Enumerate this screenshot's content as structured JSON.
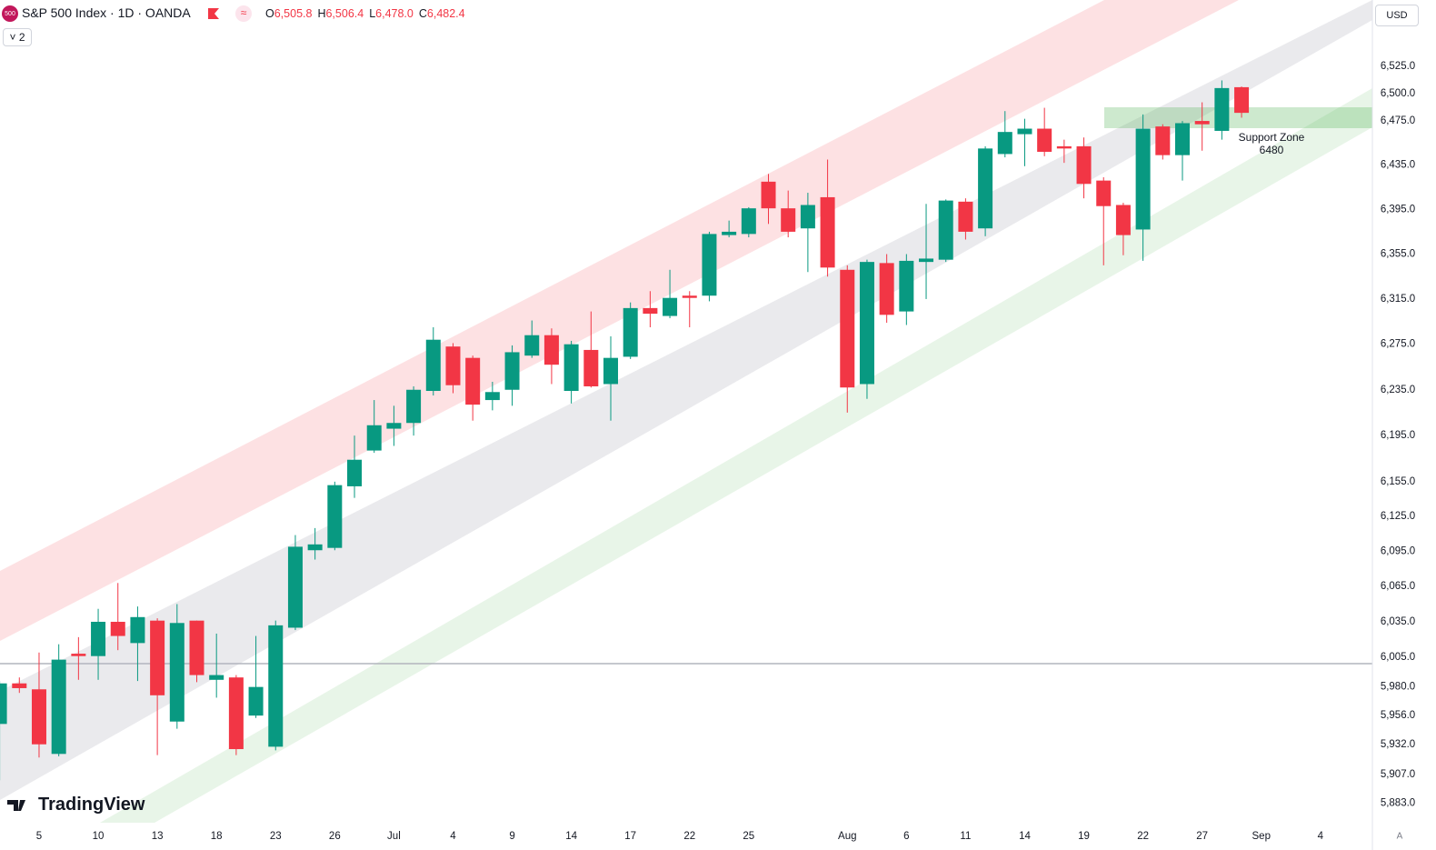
{
  "header": {
    "symbol_badge": "500",
    "title": "S&P 500 Index · 1D · OANDA",
    "ohlc": [
      {
        "key": "O",
        "value": "6,505.8"
      },
      {
        "key": "H",
        "value": "6,506.4"
      },
      {
        "key": "L",
        "value": "6,478.0"
      },
      {
        "key": "C",
        "value": "6,482.4"
      }
    ],
    "indicator_count": "2",
    "currency": "USD",
    "logo": "TradingView",
    "scale_mode": "A"
  },
  "chart_data": {
    "type": "candlestick",
    "log_scale": true,
    "grid": false,
    "up_color": "#089981",
    "down_color": "#f23645",
    "categories": [
      null,
      null,
      "5",
      null,
      null,
      "10",
      null,
      null,
      "13",
      null,
      null,
      "18",
      null,
      null,
      "23",
      null,
      null,
      "26",
      null,
      null,
      "Jul",
      null,
      null,
      "4",
      null,
      null,
      "9",
      null,
      null,
      "14",
      null,
      null,
      "17",
      null,
      null,
      "22",
      null,
      null,
      "25",
      null,
      null,
      null,
      null,
      "Aug",
      null,
      null,
      "6",
      null,
      null,
      "11",
      null,
      null,
      "14",
      null,
      null,
      "19",
      null,
      null,
      "22",
      null,
      null,
      "27",
      null,
      null,
      "Sep",
      null,
      null,
      "4",
      null
    ],
    "open": [
      5949,
      5983,
      5978,
      5924,
      6008,
      6006,
      6035,
      6017,
      6036,
      5951,
      6036,
      5986,
      5988,
      5956,
      5930,
      6030,
      6096,
      6098,
      6151,
      6182,
      6201,
      6206,
      6234,
      6273,
      6263,
      6226,
      6235,
      6265,
      6283,
      6234,
      6270,
      6240,
      6264,
      6307,
      6300,
      6318,
      6318,
      6372,
      6373,
      6420,
      6396,
      6378,
      6406,
      6341,
      6240,
      6347,
      6304,
      6348,
      6350,
      6402,
      6378,
      6445,
      6463,
      6468,
      6452,
      6452,
      6421,
      6399,
      6377,
      6470,
      6444,
      6475,
      6466,
      6505.8,
      null,
      null,
      null,
      null,
      null
    ],
    "high": [
      5985,
      5988,
      6009,
      6016,
      6022,
      6046,
      6068,
      6048,
      6038,
      6050,
      6036,
      6025,
      5990,
      6023,
      6036,
      6109,
      6115,
      6155,
      6195,
      6226,
      6221,
      6238,
      6290,
      6276,
      6265,
      6242,
      6274,
      6296,
      6289,
      6278,
      6304,
      6282,
      6312,
      6322,
      6341,
      6322,
      6375,
      6385,
      6397,
      6427,
      6412,
      6410,
      6440,
      6345,
      6350,
      6355,
      6355,
      6400,
      6404,
      6405,
      6452,
      6484,
      6477,
      6487,
      6458,
      6460,
      6424,
      6401,
      6481,
      6472,
      6475,
      6492,
      6512,
      6506.4,
      null,
      null,
      null,
      null,
      null
    ],
    "low": [
      5902,
      5975,
      5921,
      5922,
      5986,
      5986,
      6011,
      5985,
      5923,
      5945,
      5984,
      5971,
      5923,
      5954,
      5927,
      6028,
      6088,
      6096,
      6141,
      6180,
      6186,
      6195,
      6230,
      6232,
      6208,
      6217,
      6221,
      6263,
      6240,
      6223,
      6237,
      6208,
      6262,
      6290,
      6298,
      6290,
      6313,
      6370,
      6370,
      6382,
      6370,
      6339,
      6335,
      6215,
      6227,
      6294,
      6292,
      6315,
      6348,
      6368,
      6371,
      6442,
      6434,
      6443,
      6437,
      6405,
      6345,
      6354,
      6349,
      6440,
      6421,
      6448,
      6458,
      6478.0,
      null,
      null,
      null,
      null,
      null
    ],
    "close": [
      5983,
      5979,
      5932,
      6003,
      6006,
      6035,
      6023,
      6039,
      5973,
      6034,
      5990,
      5990,
      5928,
      5980,
      6032,
      6099,
      6101,
      6152,
      6174,
      6204,
      6206,
      6235,
      6279,
      6239,
      6222,
      6233,
      6268,
      6283,
      6257,
      6275,
      6238,
      6263,
      6307,
      6302,
      6316,
      6316,
      6373,
      6375,
      6396,
      6396,
      6375,
      6399,
      6343,
      6237,
      6348,
      6301,
      6349,
      6351,
      6403,
      6375,
      6450,
      6465,
      6468,
      6447,
      6450,
      6418,
      6398,
      6372,
      6468,
      6444,
      6473,
      6472,
      6505,
      6482.4,
      null,
      null,
      null,
      null,
      null
    ],
    "ylim": [
      5867,
      6586
    ],
    "yticks": [
      {
        "value": 6525,
        "label": "6,525.0"
      },
      {
        "value": 6500,
        "label": "6,500.0"
      },
      {
        "value": 6475,
        "label": "6,475.0"
      },
      {
        "value": 6435,
        "label": "6,435.0"
      },
      {
        "value": 6395,
        "label": "6,395.0"
      },
      {
        "value": 6355,
        "label": "6,355.0"
      },
      {
        "value": 6315,
        "label": "6,315.0"
      },
      {
        "value": 6275,
        "label": "6,275.0"
      },
      {
        "value": 6235,
        "label": "6,235.0"
      },
      {
        "value": 6195,
        "label": "6,195.0"
      },
      {
        "value": 6155,
        "label": "6,155.0"
      },
      {
        "value": 6125,
        "label": "6,125.0"
      },
      {
        "value": 6095,
        "label": "6,095.0"
      },
      {
        "value": 6065,
        "label": "6,065.0"
      },
      {
        "value": 6035,
        "label": "6,035.0"
      },
      {
        "value": 6005,
        "label": "6,005.0"
      },
      {
        "value": 5980,
        "label": "5,980.0"
      },
      {
        "value": 5956,
        "label": "5,956.0"
      },
      {
        "value": 5932,
        "label": "5,932.0"
      },
      {
        "value": 5907,
        "label": "5,907.0"
      },
      {
        "value": 5883,
        "label": "5,883.0"
      }
    ],
    "annotations": [
      "Support Zone",
      "6480"
    ]
  }
}
